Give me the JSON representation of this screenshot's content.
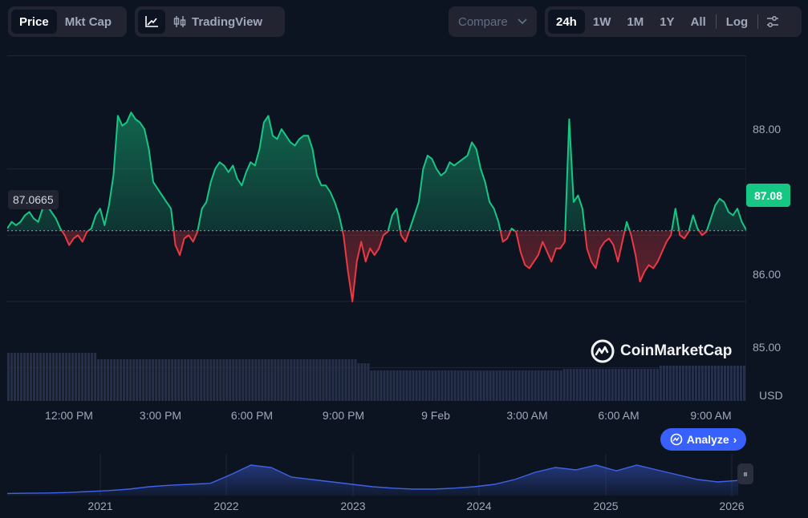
{
  "toolbar": {
    "price_label": "Price",
    "mktcap_label": "Mkt Cap",
    "tradingview_label": "TradingView",
    "compare_label": "Compare",
    "ranges": [
      "24h",
      "1W",
      "1M",
      "1Y",
      "All"
    ],
    "active_range": "24h",
    "log_label": "Log",
    "icons": [
      "line-chart-icon",
      "candlestick-icon",
      "chevron-down-icon",
      "settings-sliders-icon"
    ]
  },
  "badges": {
    "current_price": "87.08",
    "open_price": "87.0665"
  },
  "watermark": "CoinMarketCap",
  "analyze_label": "Analyze",
  "colors": {
    "up": "#16c784",
    "down": "#ea3943",
    "accent": "#3861fb",
    "nav": "#3e63e6"
  },
  "chart_data": [
    {
      "type": "area",
      "baseline": 87.0665,
      "ylim": [
        84.5,
        89.7
      ],
      "yticks": [
        "88.00",
        "87.00",
        "86.00",
        "85.00"
      ],
      "yunit": "USD",
      "xlabels": [
        "12:00 PM",
        "3:00 PM",
        "6:00 PM",
        "9:00 PM",
        "9 Feb",
        "3:00 AM",
        "6:00 AM",
        "9:00 AM"
      ],
      "series": [
        {
          "values": [
            87.1,
            87.2,
            87.15,
            87.2,
            87.3,
            87.35,
            87.25,
            87.2,
            87.4,
            87.45,
            87.35,
            87.25,
            87.1,
            87.0,
            86.85,
            86.95,
            87.0,
            86.9,
            87.05,
            87.1,
            87.3,
            87.4,
            87.15,
            87.45,
            87.9,
            88.8,
            88.65,
            88.7,
            88.85,
            88.75,
            88.7,
            88.6,
            88.3,
            87.8,
            87.7,
            87.6,
            87.5,
            87.4,
            86.85,
            86.7,
            86.95,
            87.0,
            86.9,
            87.05,
            87.4,
            87.5,
            87.8,
            88.0,
            88.1,
            88.05,
            87.95,
            88.05,
            87.85,
            87.75,
            87.95,
            88.1,
            88.05,
            88.3,
            88.7,
            88.8,
            88.5,
            88.45,
            88.6,
            88.5,
            88.4,
            88.35,
            88.45,
            88.5,
            88.5,
            88.3,
            87.9,
            87.75,
            87.75,
            87.65,
            87.5,
            87.3,
            87.0,
            86.45,
            86.0,
            86.6,
            86.9,
            86.6,
            86.8,
            86.7,
            86.8,
            87.0,
            87.05,
            87.3,
            87.4,
            87.0,
            86.9,
            87.1,
            87.3,
            87.5,
            88.0,
            88.2,
            88.15,
            88.0,
            87.9,
            87.95,
            88.1,
            88.05,
            88.1,
            88.15,
            88.2,
            88.4,
            88.3,
            88.0,
            87.8,
            87.5,
            87.4,
            87.2,
            86.9,
            86.95,
            87.1,
            87.05,
            86.75,
            86.55,
            86.5,
            86.6,
            86.7,
            86.9,
            86.75,
            86.6,
            86.8,
            86.8,
            86.9,
            88.75,
            87.5,
            87.6,
            87.4,
            86.8,
            86.6,
            86.5,
            86.8,
            86.9,
            86.95,
            86.85,
            86.6,
            86.9,
            87.2,
            87.0,
            86.7,
            86.3,
            86.45,
            86.55,
            86.5,
            86.6,
            86.75,
            86.9,
            87.0,
            87.4,
            87.0,
            86.95,
            87.05,
            87.3,
            87.1,
            87.0,
            87.05,
            87.25,
            87.45,
            87.55,
            87.5,
            87.35,
            87.3,
            87.4,
            87.2,
            87.08
          ]
        }
      ]
    },
    {
      "type": "area",
      "xlabels": [
        "2021",
        "2022",
        "2023",
        "2024",
        "2025",
        "2026"
      ],
      "series": [
        {
          "values": [
            1,
            1.5,
            2,
            3,
            5,
            7,
            10,
            15,
            18,
            20,
            22,
            40,
            60,
            55,
            35,
            30,
            25,
            20,
            15,
            12,
            10,
            10,
            12,
            15,
            20,
            30,
            45,
            55,
            50,
            60,
            48,
            60,
            50,
            40,
            30,
            25,
            28
          ]
        }
      ]
    }
  ]
}
